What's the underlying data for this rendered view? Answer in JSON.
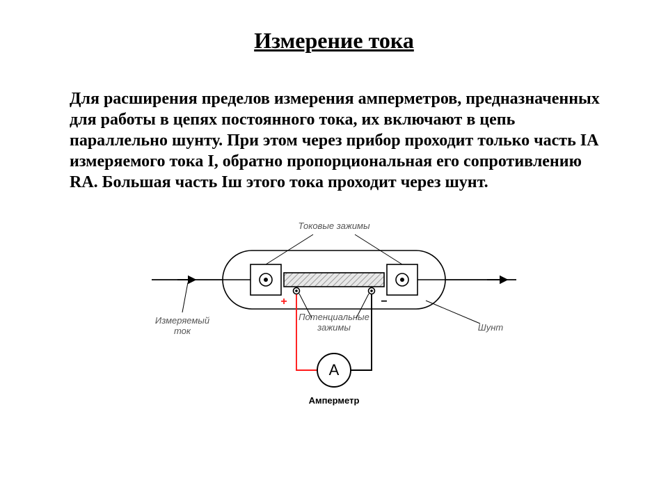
{
  "title": "Измерение тока",
  "paragraph": "Для расширения пределов измерения амперметров, предназначенных для работы в цепях постоянного тока, их включают в цепь параллельно шунту. При этом через прибор проходит только часть IA измеряемого тока I, обратно пропорциональная его сопротивлению RA. Большая часть Iш этого тока проходит через шунт.",
  "diagram": {
    "label_top": "Токовые зажимы",
    "label_potential": "Потенциальные\nзажимы",
    "label_current": "Измеряемый\nток",
    "label_shunt": "Шунт",
    "label_ammeter": "Амперметр",
    "ammeter_letter": "A",
    "plus": "+",
    "minus": "−",
    "colors": {
      "stroke": "#000000",
      "hatch": "#9a9a9a",
      "wire_red": "#ff1a1a",
      "label": "#555555",
      "bg": "#ffffff"
    },
    "stroke_width": 1.6,
    "font_size_label": 13,
    "font_size_symbol": 16,
    "font_size_ammeter": 22
  }
}
